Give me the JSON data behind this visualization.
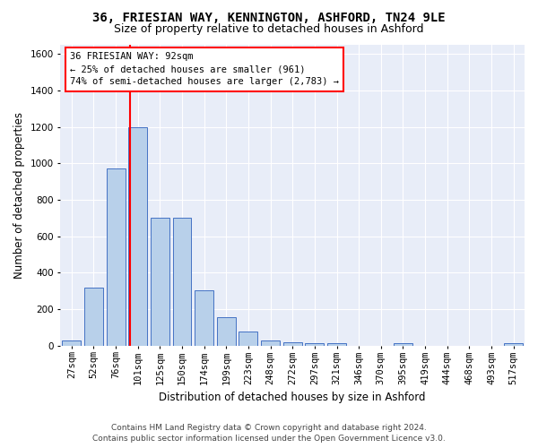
{
  "title_line1": "36, FRIESIAN WAY, KENNINGTON, ASHFORD, TN24 9LE",
  "title_line2": "Size of property relative to detached houses in Ashford",
  "xlabel": "Distribution of detached houses by size in Ashford",
  "ylabel": "Number of detached properties",
  "footer_line1": "Contains HM Land Registry data © Crown copyright and database right 2024.",
  "footer_line2": "Contains public sector information licensed under the Open Government Licence v3.0.",
  "categories": [
    "27sqm",
    "52sqm",
    "76sqm",
    "101sqm",
    "125sqm",
    "150sqm",
    "174sqm",
    "199sqm",
    "223sqm",
    "248sqm",
    "272sqm",
    "297sqm",
    "321sqm",
    "346sqm",
    "370sqm",
    "395sqm",
    "419sqm",
    "444sqm",
    "468sqm",
    "493sqm",
    "517sqm"
  ],
  "values": [
    30,
    320,
    970,
    1200,
    700,
    700,
    305,
    155,
    75,
    30,
    20,
    15,
    15,
    0,
    0,
    15,
    0,
    0,
    0,
    0,
    15
  ],
  "bar_color": "#b8d0ea",
  "bar_edge_color": "#4472c4",
  "red_line_x": 2.65,
  "annotation_text": "36 FRIESIAN WAY: 92sqm\n← 25% of detached houses are smaller (961)\n74% of semi-detached houses are larger (2,783) →",
  "ylim": [
    0,
    1650
  ],
  "yticks": [
    0,
    200,
    400,
    600,
    800,
    1000,
    1200,
    1400,
    1600
  ],
  "bg_color": "#e8edf8",
  "grid_color": "white",
  "title_fontsize": 10,
  "subtitle_fontsize": 9,
  "axis_label_fontsize": 8.5,
  "tick_fontsize": 7.5,
  "annotation_fontsize": 7.5
}
